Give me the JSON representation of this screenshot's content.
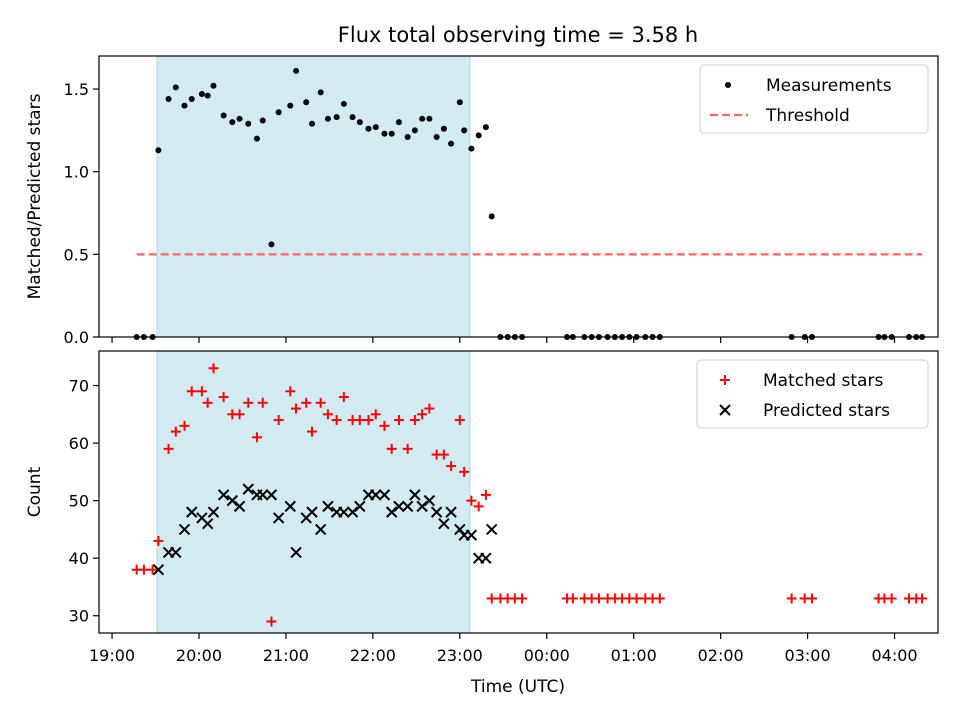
{
  "figure_title": "Flux total observing time = 3.58 h",
  "xlabel": "Time (UTC)",
  "x_ticks": [
    "19:00",
    "20:00",
    "21:00",
    "22:00",
    "23:00",
    "00:00",
    "01:00",
    "02:00",
    "03:00",
    "04:00"
  ],
  "colors": {
    "measurements": "#000000",
    "threshold": "#ff6666",
    "matched": "#ff0000",
    "predicted": "#000000",
    "shade": "#add8e6"
  },
  "chart_data": [
    {
      "type": "scatter",
      "ylabel": "Matched/Predicted stars",
      "ylim": [
        0,
        1.7
      ],
      "y_ticks": [
        "0.0",
        "0.5",
        "1.0",
        "1.5"
      ],
      "xlim": [
        "18:51",
        "04:30"
      ],
      "shaded_interval": [
        "19:31",
        "23:07"
      ],
      "legend": "top-right",
      "series": [
        {
          "name": "Measurements",
          "marker": "dot",
          "points": [
            [
              "19:17",
              0
            ],
            [
              "19:22",
              0
            ],
            [
              "19:28",
              0
            ],
            [
              "19:32",
              1.13
            ],
            [
              "19:39",
              1.44
            ],
            [
              "19:44",
              1.51
            ],
            [
              "19:50",
              1.4
            ],
            [
              "19:55",
              1.44
            ],
            [
              "20:02",
              1.47
            ],
            [
              "20:06",
              1.46
            ],
            [
              "20:10",
              1.52
            ],
            [
              "20:17",
              1.34
            ],
            [
              "20:23",
              1.3
            ],
            [
              "20:28",
              1.32
            ],
            [
              "20:34",
              1.29
            ],
            [
              "20:40",
              1.2
            ],
            [
              "20:44",
              1.31
            ],
            [
              "20:50",
              0.56
            ],
            [
              "20:55",
              1.36
            ],
            [
              "21:03",
              1.4
            ],
            [
              "21:07",
              1.61
            ],
            [
              "21:14",
              1.42
            ],
            [
              "21:18",
              1.29
            ],
            [
              "21:24",
              1.48
            ],
            [
              "21:29",
              1.32
            ],
            [
              "21:35",
              1.33
            ],
            [
              "21:40",
              1.41
            ],
            [
              "21:46",
              1.33
            ],
            [
              "21:51",
              1.3
            ],
            [
              "21:57",
              1.26
            ],
            [
              "22:02",
              1.27
            ],
            [
              "22:08",
              1.23
            ],
            [
              "22:13",
              1.23
            ],
            [
              "22:18",
              1.3
            ],
            [
              "22:24",
              1.21
            ],
            [
              "22:29",
              1.25
            ],
            [
              "22:34",
              1.32
            ],
            [
              "22:39",
              1.32
            ],
            [
              "22:44",
              1.21
            ],
            [
              "22:49",
              1.26
            ],
            [
              "22:54",
              1.17
            ],
            [
              "23:00",
              1.42
            ],
            [
              "23:03",
              1.25
            ],
            [
              "23:08",
              1.14
            ],
            [
              "23:13",
              1.22
            ],
            [
              "23:18",
              1.27
            ],
            [
              "23:22",
              0.73
            ],
            [
              "23:28",
              0
            ],
            [
              "23:33",
              0
            ],
            [
              "23:38",
              0
            ],
            [
              "23:43",
              0
            ],
            [
              "00:14",
              0
            ],
            [
              "00:18",
              0
            ],
            [
              "00:26",
              0
            ],
            [
              "00:31",
              0
            ],
            [
              "00:36",
              0
            ],
            [
              "00:42",
              0
            ],
            [
              "00:47",
              0
            ],
            [
              "00:52",
              0
            ],
            [
              "00:57",
              0
            ],
            [
              "01:02",
              0
            ],
            [
              "01:08",
              0
            ],
            [
              "01:13",
              0
            ],
            [
              "01:18",
              0
            ],
            [
              "02:49",
              0
            ],
            [
              "02:58",
              0
            ],
            [
              "03:03",
              0
            ],
            [
              "03:49",
              0
            ],
            [
              "03:53",
              0
            ],
            [
              "03:58",
              0
            ],
            [
              "04:10",
              0
            ],
            [
              "04:15",
              0
            ],
            [
              "04:19",
              0
            ]
          ]
        },
        {
          "name": "Threshold",
          "marker": "dashed-line",
          "points": [
            [
              "19:17",
              0.5
            ],
            [
              "04:19",
              0.5
            ]
          ]
        }
      ]
    },
    {
      "type": "scatter",
      "ylabel": "Count",
      "ylim": [
        27,
        76
      ],
      "y_ticks": [
        "30",
        "40",
        "50",
        "60",
        "70"
      ],
      "xlim": [
        "18:51",
        "04:30"
      ],
      "shaded_interval": [
        "19:31",
        "23:07"
      ],
      "legend": "top-right",
      "series": [
        {
          "name": "Matched stars",
          "marker": "plus",
          "points": [
            [
              "19:17",
              38
            ],
            [
              "19:22",
              38
            ],
            [
              "19:28",
              38
            ],
            [
              "19:32",
              43
            ],
            [
              "19:39",
              59
            ],
            [
              "19:44",
              62
            ],
            [
              "19:50",
              63
            ],
            [
              "19:55",
              69
            ],
            [
              "20:02",
              69
            ],
            [
              "20:06",
              67
            ],
            [
              "20:10",
              73
            ],
            [
              "20:17",
              68
            ],
            [
              "20:23",
              65
            ],
            [
              "20:28",
              65
            ],
            [
              "20:34",
              67
            ],
            [
              "20:40",
              61
            ],
            [
              "20:44",
              67
            ],
            [
              "20:50",
              29
            ],
            [
              "20:55",
              64
            ],
            [
              "21:03",
              69
            ],
            [
              "21:07",
              66
            ],
            [
              "21:14",
              67
            ],
            [
              "21:18",
              62
            ],
            [
              "21:24",
              67
            ],
            [
              "21:29",
              65
            ],
            [
              "21:35",
              64
            ],
            [
              "21:40",
              68
            ],
            [
              "21:46",
              64
            ],
            [
              "21:51",
              64
            ],
            [
              "21:57",
              64
            ],
            [
              "22:02",
              65
            ],
            [
              "22:08",
              63
            ],
            [
              "22:13",
              59
            ],
            [
              "22:18",
              64
            ],
            [
              "22:24",
              59
            ],
            [
              "22:29",
              64
            ],
            [
              "22:34",
              65
            ],
            [
              "22:39",
              66
            ],
            [
              "22:44",
              58
            ],
            [
              "22:49",
              58
            ],
            [
              "22:54",
              56
            ],
            [
              "23:00",
              64
            ],
            [
              "23:03",
              55
            ],
            [
              "23:08",
              50
            ],
            [
              "23:13",
              49
            ],
            [
              "23:18",
              51
            ],
            [
              "23:22",
              33
            ],
            [
              "23:28",
              33
            ],
            [
              "23:33",
              33
            ],
            [
              "23:38",
              33
            ],
            [
              "23:43",
              33
            ],
            [
              "00:14",
              33
            ],
            [
              "00:18",
              33
            ],
            [
              "00:26",
              33
            ],
            [
              "00:31",
              33
            ],
            [
              "00:36",
              33
            ],
            [
              "00:42",
              33
            ],
            [
              "00:47",
              33
            ],
            [
              "00:52",
              33
            ],
            [
              "00:57",
              33
            ],
            [
              "01:02",
              33
            ],
            [
              "01:08",
              33
            ],
            [
              "01:13",
              33
            ],
            [
              "01:18",
              33
            ],
            [
              "02:49",
              33
            ],
            [
              "02:58",
              33
            ],
            [
              "03:03",
              33
            ],
            [
              "03:49",
              33
            ],
            [
              "03:53",
              33
            ],
            [
              "03:58",
              33
            ],
            [
              "04:10",
              33
            ],
            [
              "04:15",
              33
            ],
            [
              "04:19",
              33
            ]
          ]
        },
        {
          "name": "Predicted stars",
          "marker": "x",
          "points": [
            [
              "19:32",
              38
            ],
            [
              "19:39",
              41
            ],
            [
              "19:44",
              41
            ],
            [
              "19:50",
              45
            ],
            [
              "19:55",
              48
            ],
            [
              "20:02",
              47
            ],
            [
              "20:06",
              46
            ],
            [
              "20:10",
              48
            ],
            [
              "20:17",
              51
            ],
            [
              "20:23",
              50
            ],
            [
              "20:28",
              49
            ],
            [
              "20:34",
              52
            ],
            [
              "20:40",
              51
            ],
            [
              "20:44",
              51
            ],
            [
              "20:50",
              51
            ],
            [
              "20:55",
              47
            ],
            [
              "21:03",
              49
            ],
            [
              "21:07",
              41
            ],
            [
              "21:14",
              47
            ],
            [
              "21:18",
              48
            ],
            [
              "21:24",
              45
            ],
            [
              "21:29",
              49
            ],
            [
              "21:35",
              48
            ],
            [
              "21:40",
              48
            ],
            [
              "21:46",
              48
            ],
            [
              "21:51",
              49
            ],
            [
              "21:57",
              51
            ],
            [
              "22:02",
              51
            ],
            [
              "22:08",
              51
            ],
            [
              "22:13",
              48
            ],
            [
              "22:18",
              49
            ],
            [
              "22:24",
              49
            ],
            [
              "22:29",
              51
            ],
            [
              "22:34",
              49
            ],
            [
              "22:39",
              50
            ],
            [
              "22:44",
              48
            ],
            [
              "22:49",
              46
            ],
            [
              "22:54",
              48
            ],
            [
              "23:00",
              45
            ],
            [
              "23:03",
              44
            ],
            [
              "23:08",
              44
            ],
            [
              "23:13",
              40
            ],
            [
              "23:18",
              40
            ],
            [
              "23:22",
              45
            ]
          ]
        }
      ]
    }
  ]
}
